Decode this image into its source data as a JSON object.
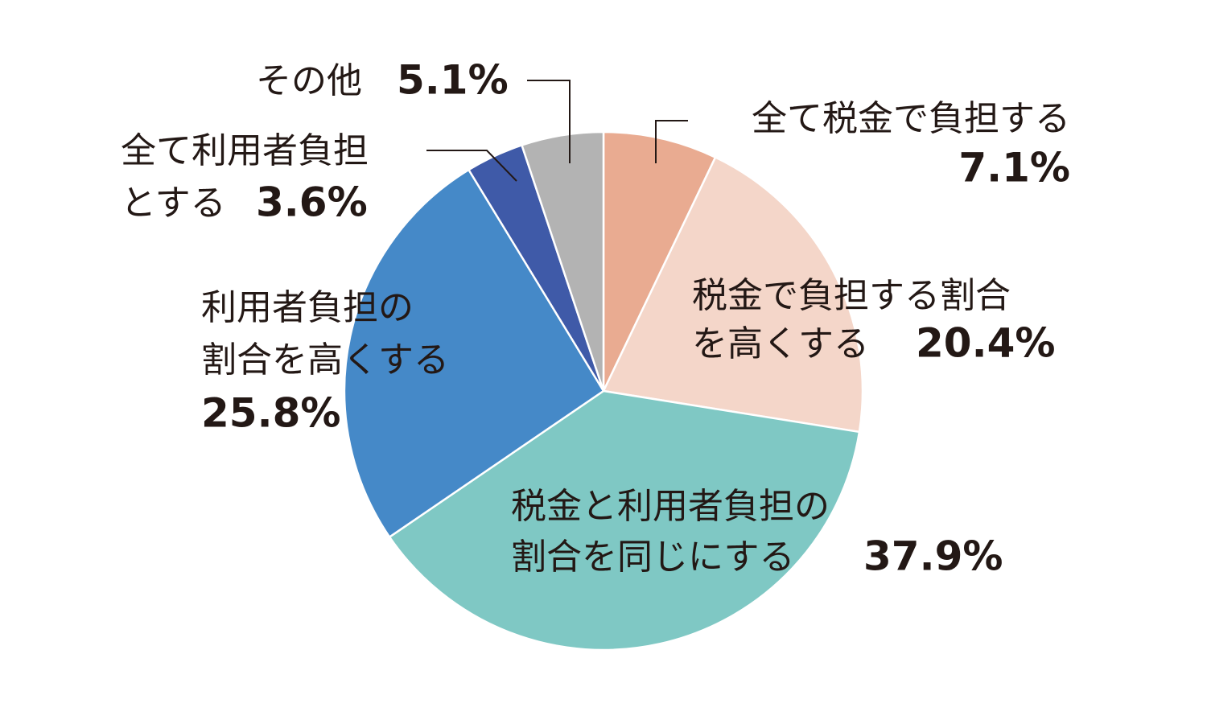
{
  "chart_data": {
    "type": "pie",
    "categories": [
      "全て税金で負担する",
      "税金で負担する割合を高くする",
      "税金と利用者負担の割合を同じにする",
      "利用者負担の割合を高くする",
      "全て利用者負担とする",
      "その他"
    ],
    "values": [
      7.1,
      20.4,
      37.9,
      25.8,
      3.6,
      5.1
    ],
    "value_labels": [
      "7.1%",
      "20.4%",
      "37.9%",
      "25.8%",
      "3.6%",
      "5.1%"
    ],
    "colors": [
      "#e9ab91",
      "#f4d6c9",
      "#7fc8c4",
      "#4589c8",
      "#3f5aa8",
      "#b3b3b3"
    ]
  }
}
